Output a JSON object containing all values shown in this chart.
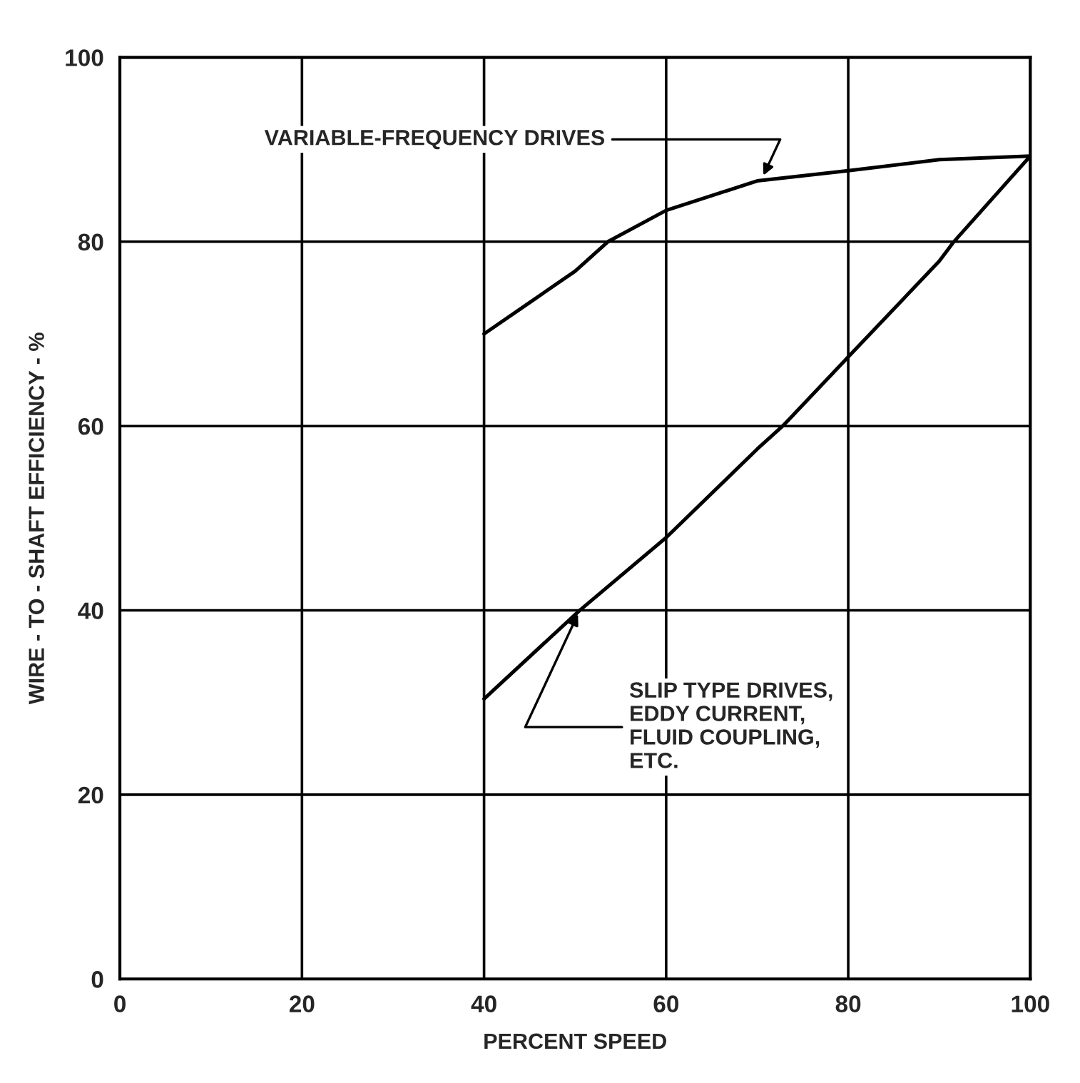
{
  "chart_data": {
    "type": "line",
    "xlabel": "PERCENT SPEED",
    "ylabel": "WIRE - TO - SHAFT EFFICIENCY - %",
    "xlim": [
      0,
      100
    ],
    "ylim": [
      0,
      100
    ],
    "xticks": [
      0,
      20,
      40,
      60,
      80,
      100
    ],
    "yticks": [
      0,
      20,
      40,
      60,
      80,
      100
    ],
    "grid": true,
    "legend": false,
    "marker": "none",
    "line_style": "solid",
    "series": [
      {
        "color": "#000000",
        "x": [
          40,
          45,
          50,
          53.6,
          60,
          70,
          80,
          90,
          100
        ],
        "values": [
          70,
          73.4,
          76.8,
          80,
          83.4,
          86.6,
          87.7,
          88.9,
          89.3
        ]
      },
      {
        "color": "#000000",
        "x": [
          40,
          50.5,
          60,
          70,
          72.8,
          80,
          90,
          91.6,
          100
        ],
        "values": [
          30.4,
          40,
          47.9,
          57.5,
          60,
          67.5,
          77.9,
          80,
          89.3
        ]
      }
    ],
    "annotations": [
      {
        "text": "VARIABLE-FREQUENCY DRIVES",
        "x": 70.5,
        "y": 86.8
      },
      {
        "text": "SLIP TYPE DRIVES,\nEDDY CURRENT,\nFLUID COUPLING,\nETC.",
        "x": 50.5,
        "y": 40
      }
    ]
  }
}
